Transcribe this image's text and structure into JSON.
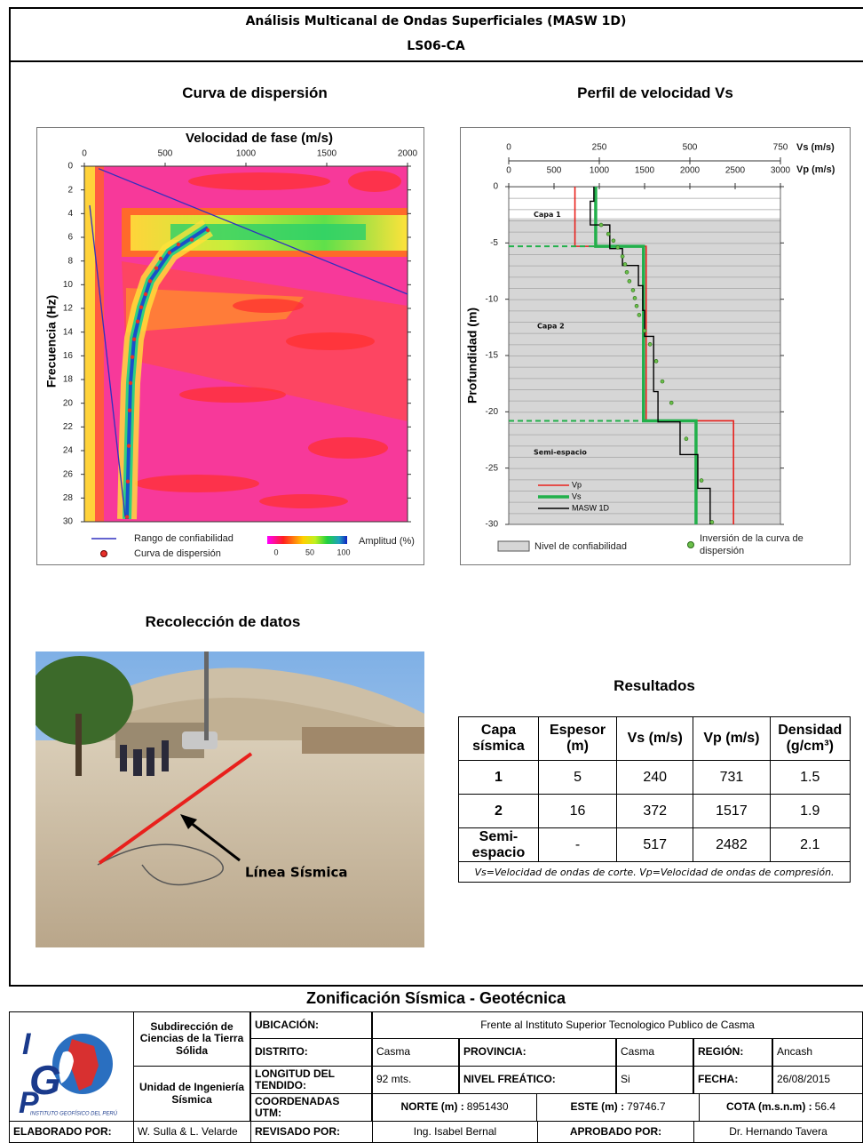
{
  "header": {
    "title": "Análisis Multicanal de Ondas Superficiales (MASW 1D)",
    "subtitle": "LS06-CA"
  },
  "chart_data": [
    {
      "type": "heatmap",
      "title": "Curva de dispersión",
      "x_label": "Velocidad de fase (m/s)",
      "y_label": "Frecuencia (Hz)",
      "xlim": [
        0,
        2000
      ],
      "xticks": [
        0,
        500,
        1000,
        1500,
        2000
      ],
      "ylim": [
        0,
        30
      ],
      "y_reversed": true,
      "yticks": [
        0,
        2,
        4,
        6,
        8,
        10,
        12,
        14,
        16,
        18,
        20,
        22,
        24,
        26,
        28,
        30
      ],
      "series": [
        {
          "name": "Rango de confiabilidad",
          "color": "#3030c0",
          "style": "line",
          "x": [
            88,
            2000,
            null,
            33,
            253
          ],
          "values": [
            0.2,
            10.8,
            null,
            3.3,
            29.6
          ]
        },
        {
          "name": "Curva de dispersión",
          "color": "#e8302a",
          "style": "dots",
          "x": [
            764,
            665,
            582,
            527,
            473,
            445,
            407,
            379,
            352,
            330,
            308,
            297,
            286,
            280,
            275,
            269,
            264
          ],
          "values": [
            5.4,
            6.2,
            6.6,
            7.3,
            7.8,
            8.6,
            9.7,
            10.8,
            11.9,
            13.1,
            14.6,
            16.1,
            18.3,
            20.6,
            23.6,
            26.6,
            29.6
          ]
        }
      ],
      "colorbar": {
        "label": "Amplitud (%)",
        "ticks": [
          0,
          50,
          100
        ]
      }
    },
    {
      "type": "step",
      "title": "Perfil de velocidad Vs",
      "y_label": "Profundidad (m)",
      "ylim": [
        -30,
        0
      ],
      "yticks": [
        0,
        -5,
        -10,
        -15,
        -20,
        -25,
        -30
      ],
      "xlim": [
        0,
        3000
      ],
      "xticks": [
        0,
        500,
        1000,
        1500,
        2000,
        2500,
        3000
      ],
      "x_label": "Vp (m/s)",
      "x2lim": [
        0,
        750
      ],
      "x2ticks": [
        0,
        250,
        500,
        750
      ],
      "x2_label": "Vs (m/s)",
      "series": [
        {
          "name": "Vp",
          "color": "#e8201c",
          "axis": "x",
          "style": "line",
          "x": [
            731,
            731,
            1517,
            1517,
            2482,
            2482
          ],
          "values": [
            0,
            -5.3,
            -5.3,
            -20.8,
            -20.8,
            -30
          ]
        },
        {
          "name": "Vs",
          "color": "#22b04b",
          "axis": "x2",
          "style": "line",
          "x": [
            240,
            240,
            372,
            372,
            517,
            517
          ],
          "values": [
            0,
            -5.3,
            -5.3,
            -20.8,
            -20.8,
            -30
          ]
        },
        {
          "name": "MASW 1D",
          "color": "#000000",
          "axis": "x2",
          "style": "line",
          "x": [
            235,
            235,
            225,
            225,
            279,
            279,
            314,
            314,
            358,
            358,
            370,
            370,
            375,
            375,
            400,
            400,
            412,
            412,
            473,
            473,
            522,
            522,
            556,
            556
          ],
          "values": [
            0,
            -1.3,
            -1.3,
            -3.4,
            -3.4,
            -5.5,
            -5.5,
            -7,
            -7,
            -8.8,
            -8.8,
            -11,
            -11,
            -13.3,
            -13.3,
            -18.2,
            -18.2,
            -20.9,
            -20.9,
            -23.8,
            -23.8,
            -26.8,
            -26.8,
            -30
          ]
        },
        {
          "name": "Inversión de la curva de dispersión",
          "color": "#6cc04a",
          "axis": "x2",
          "style": "dots",
          "x": [
            255,
            275,
            289,
            301,
            314,
            321,
            326,
            333,
            343,
            348,
            353,
            360,
            375,
            390,
            407,
            424,
            449,
            490,
            532,
            561
          ],
          "values": [
            -3.4,
            -4.2,
            -4.8,
            -5.4,
            -6.2,
            -6.9,
            -7.6,
            -8.4,
            -9.2,
            -9.9,
            -10.6,
            -11.4,
            -12.8,
            -14,
            -15.5,
            -17.3,
            -19.2,
            -22.4,
            -26.1,
            -29.8
          ]
        }
      ],
      "reliability": {
        "name": "Nivel de confiabilidad",
        "depth": -2.8,
        "color": "#d6d6d6"
      },
      "annotations": [
        "Capa 1",
        "Capa 2",
        "Semi-espacio"
      ]
    }
  ],
  "photo": {
    "title": "Recolección de datos",
    "label": "Línea Sísmica"
  },
  "results": {
    "title": "Resultados",
    "columns": [
      "Capa sísmica",
      "Espesor (m)",
      "Vs (m/s)",
      "Vp (m/s)",
      "Densidad (g/cm³)"
    ],
    "rows": [
      [
        1,
        5,
        240,
        731,
        1.5
      ],
      [
        2,
        16,
        372,
        1517,
        1.9
      ],
      [
        "Semi-espacio",
        "-",
        517,
        2482,
        2.1
      ]
    ],
    "note": "Vs=Velocidad de ondas de corte.  Vp=Velocidad de ondas de compresión."
  },
  "footer": {
    "title": "Zonificación Sísmica - Geotécnica",
    "logo": {
      "letters": [
        "I",
        "G",
        "P"
      ],
      "caption": "INSTITUTO GEOFÍSICO DEL PERÚ"
    },
    "units": [
      "Subdirección de Ciencias de la Tierra Sólida",
      "Unidad de Ingeniería Sísmica"
    ],
    "location": {
      "label": "UBICACIÓN:",
      "value": "Frente al Instituto Superior Tecnologico Publico de Casma"
    },
    "district": {
      "label": "DISTRITO:",
      "value": "Casma"
    },
    "province": {
      "label": "PROVINCIA:",
      "value": "Casma"
    },
    "region": {
      "label": "REGIÓN:",
      "value": "Ancash"
    },
    "length": {
      "label": "LONGITUD DEL TENDIDO:",
      "value": "92 mts."
    },
    "water_table": {
      "label": "NIVEL FREÁTICO:",
      "value": "Si"
    },
    "date": {
      "label": "FECHA:",
      "value": "26/08/2015"
    },
    "utm": {
      "label": "COORDENADAS UTM:",
      "north_label": "NORTE (m) :",
      "north": 8951430,
      "east_label": "ESTE (m) :",
      "east": 79746.7,
      "elevation_label": "COTA (m.s.n.m) :",
      "elevation": 56.4
    },
    "prepared": {
      "label": "ELABORADO POR:",
      "value": "W. Sulla & L. Velarde"
    },
    "reviewed": {
      "label": "REVISADO POR:",
      "value": "Ing. Isabel Bernal"
    },
    "approved": {
      "label": "APROBADO POR:",
      "value": "Dr. Hernando Tavera"
    }
  }
}
